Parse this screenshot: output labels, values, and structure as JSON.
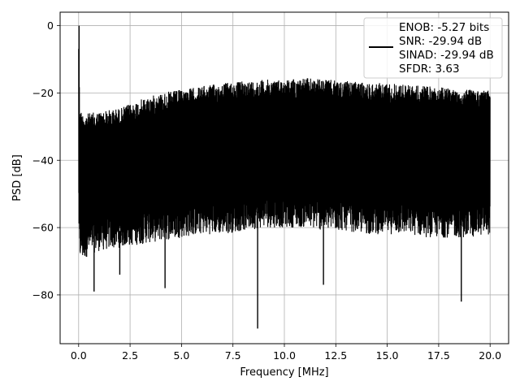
{
  "chart_data": {
    "type": "line",
    "title": "",
    "xlabel": "Frequency [MHz]",
    "ylabel": "PSD [dB]",
    "xlim": [
      -0.9,
      20.9
    ],
    "ylim": [
      -94.5,
      4.0
    ],
    "x_ticks": [
      0.0,
      2.5,
      5.0,
      7.5,
      10.0,
      12.5,
      15.0,
      17.5,
      20.0
    ],
    "x_tick_labels": [
      "0.0",
      "2.5",
      "5.0",
      "7.5",
      "10.0",
      "12.5",
      "15.0",
      "17.5",
      "20.0"
    ],
    "y_ticks": [
      0,
      -20,
      -40,
      -60,
      -80
    ],
    "y_tick_labels": [
      "0",
      "−20",
      "−40",
      "−60",
      "−80"
    ],
    "grid": true,
    "legend": {
      "placement": "top-right",
      "lines": [
        "ENOB: -5.27 bits",
        "SNR: -29.94 dB",
        "SINAD: -29.94 dB",
        "SFDR: 3.63"
      ]
    },
    "series": [
      {
        "color": "#000000",
        "x": [
          0.0,
          0.05,
          0.1,
          0.2,
          0.5,
          1.0,
          2.0,
          3.0,
          4.0,
          5.0,
          6.0,
          7.0,
          8.0,
          9.0,
          10.0,
          11.0,
          12.0,
          13.0,
          14.0,
          15.0,
          16.0,
          17.0,
          18.0,
          19.0,
          20.0
        ],
        "upper": [
          -3,
          -22,
          -25,
          -26,
          -26,
          -25.5,
          -24.5,
          -22,
          -20,
          -19,
          -18,
          -17,
          -16.5,
          -16,
          -16,
          -15.5,
          -16,
          -16.5,
          -17,
          -17,
          -17.5,
          -18,
          -18.5,
          -19,
          -19
        ],
        "lower": [
          -50,
          -72,
          -68,
          -70,
          -68,
          -67,
          -66,
          -65,
          -64,
          -63,
          -62,
          -62,
          -61,
          -60,
          -60,
          -60,
          -61,
          -61,
          -62,
          -62,
          -62,
          -63,
          -63,
          -63,
          -62
        ],
        "spikes": [
          {
            "x": 0.02,
            "y": 0.0
          },
          {
            "x": 0.75,
            "y": -79
          },
          {
            "x": 2.0,
            "y": -74
          },
          {
            "x": 4.2,
            "y": -78
          },
          {
            "x": 8.7,
            "y": -90
          },
          {
            "x": 11.9,
            "y": -77
          },
          {
            "x": 18.6,
            "y": -82
          }
        ]
      }
    ]
  }
}
